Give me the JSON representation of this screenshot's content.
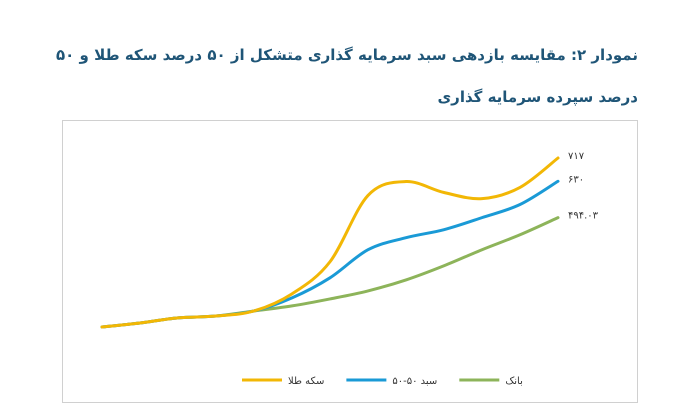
{
  "chart_data": {
    "type": "line",
    "title": "نمودار ۲: مقایسه بازدهی سبد سرمایه گذاری متشکل از ۵۰ درصد سکه طلا و ۵۰ درصد سپرده سرمایه گذاری",
    "series": [
      {
        "name": "سکه طلا",
        "color": "#f2b705",
        "values": [
          85,
          100,
          119,
          126,
          145,
          209,
          329,
          577,
          629,
          588,
          565,
          607,
          717
        ],
        "value_labels": [
          null,
          null,
          null,
          null,
          null,
          null,
          null,
          null,
          null,
          null,
          null,
          null,
          "۷۱۷"
        ]
      },
      {
        "name": "سبد ۵۰-۵۰",
        "color": "#1a9ad6",
        "values": [
          85,
          100,
          119,
          126,
          145,
          194,
          269,
          374,
          419,
          449,
          494,
          543,
          630
        ],
        "value_labels": [
          null,
          null,
          null,
          null,
          null,
          null,
          null,
          null,
          null,
          null,
          null,
          null,
          "۶۳۰"
        ]
      },
      {
        "name": "بانک",
        "color": "#8db45a",
        "values": [
          85,
          100,
          119,
          126,
          145,
          164,
          190,
          220,
          261,
          314,
          374,
          430,
          494.03
        ],
        "value_labels": [
          null,
          null,
          null,
          null,
          null,
          null,
          null,
          null,
          null,
          null,
          null,
          null,
          "۴۹۴.۰۳"
        ]
      }
    ],
    "legend": "bottom"
  }
}
